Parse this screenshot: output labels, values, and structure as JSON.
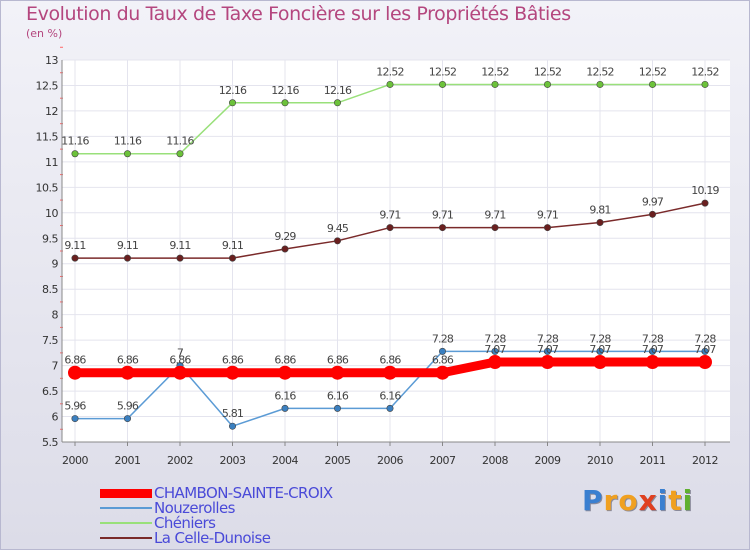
{
  "title": "Evolution du Taux de Taxe Foncière sur les Propriétés Bâties",
  "unit_label": "(en %)",
  "logo": {
    "text": "Proxiti",
    "letters": [
      "P",
      "r",
      "o",
      "x",
      "i",
      "t",
      "i"
    ],
    "colors": [
      "#3a7fd0",
      "#f0a020",
      "#f0a020",
      "#e04020",
      "#3a7fd0",
      "#f0a020",
      "#60b030"
    ]
  },
  "chart_data": {
    "type": "line",
    "title": "Evolution du Taux de Taxe Foncière sur les Propriétés Bâties",
    "ylabel": "(en %)",
    "xlabel": "",
    "ylim": [
      5.5,
      13
    ],
    "yticks": [
      "5.5",
      "6",
      "6.5",
      "7",
      "7.5",
      "8",
      "8.5",
      "9",
      "9.5",
      "10",
      "10.5",
      "11",
      "11.5",
      "12",
      "12.5",
      "13"
    ],
    "categories": [
      "2000",
      "2001",
      "2002",
      "2003",
      "2004",
      "2005",
      "2006",
      "2007",
      "2008",
      "2009",
      "2010",
      "2011",
      "2012"
    ],
    "series": [
      {
        "name": "CHAMBON-SAINTE-CROIX",
        "color": "#ff0000",
        "width": 9,
        "marker": "circle-big",
        "values": [
          6.86,
          6.86,
          6.86,
          6.86,
          6.86,
          6.86,
          6.86,
          6.86,
          7.07,
          7.07,
          7.07,
          7.07,
          7.07
        ],
        "labels": [
          "6.86",
          "6.86",
          "6.86",
          "6.86",
          "6.86",
          "6.86",
          "6.86",
          "6.86",
          "7.07",
          "7.07",
          "7.07",
          "7.07",
          "7.07"
        ]
      },
      {
        "name": "Nouzerolles",
        "color": "#5b9bd5",
        "width": 1.5,
        "marker": "#3a7fc0",
        "values": [
          5.96,
          5.96,
          7,
          5.81,
          6.16,
          6.16,
          6.16,
          7.28,
          7.28,
          7.28,
          7.28,
          7.28,
          7.28
        ],
        "labels": [
          "5.96",
          "5.96",
          "7",
          "5.81",
          "6.16",
          "6.16",
          "6.16",
          "7.28",
          "7.28",
          "7.28",
          "7.28",
          "7.28",
          "7.28"
        ]
      },
      {
        "name": "Chéniers",
        "color": "#99e07a",
        "width": 1.5,
        "marker": "#6cc23a",
        "values": [
          11.16,
          11.16,
          11.16,
          12.16,
          12.16,
          12.16,
          12.52,
          12.52,
          12.52,
          12.52,
          12.52,
          12.52,
          12.52
        ],
        "labels": [
          "11.16",
          "11.16",
          "11.16",
          "12.16",
          "12.16",
          "12.16",
          "12.52",
          "12.52",
          "12.52",
          "12.52",
          "12.52",
          "12.52",
          "12.52"
        ]
      },
      {
        "name": "La Celle-Dunoise",
        "color": "#7a2a2a",
        "width": 1.5,
        "marker": "#6a1f1f",
        "values": [
          9.11,
          9.11,
          9.11,
          9.11,
          9.29,
          9.45,
          9.71,
          9.71,
          9.71,
          9.71,
          9.81,
          9.97,
          10.19
        ],
        "labels": [
          "9.11",
          "9.11",
          "9.11",
          "9.11",
          "9.29",
          "9.45",
          "9.71",
          "9.71",
          "9.71",
          "9.71",
          "9.81",
          "9.97",
          "10.19"
        ]
      }
    ]
  },
  "legend": {
    "items": [
      {
        "label": "CHAMBON-SAINTE-CROIX",
        "color": "#ff0000"
      },
      {
        "label": "Nouzerolles",
        "color": "#5b9bd5"
      },
      {
        "label": "Chéniers",
        "color": "#99e07a"
      },
      {
        "label": "La Celle-Dunoise",
        "color": "#7a2a2a"
      }
    ]
  }
}
